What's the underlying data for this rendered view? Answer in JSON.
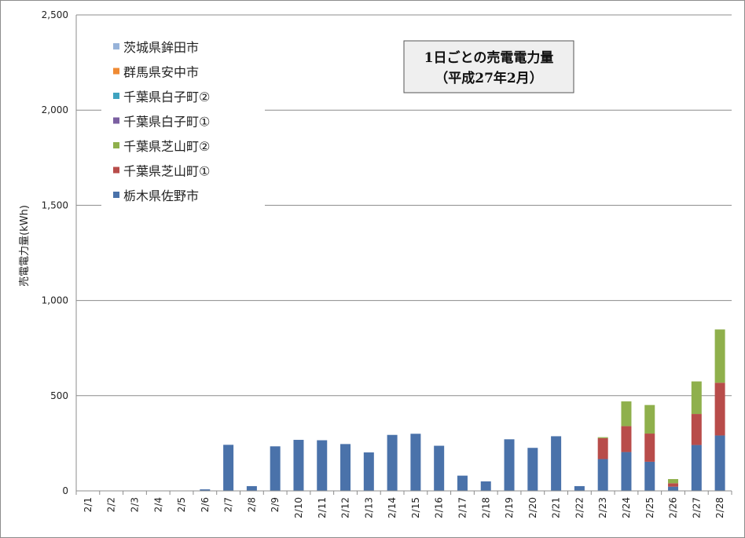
{
  "chart_data": {
    "type": "bar",
    "stacked": true,
    "title": "1日ごとの売電電力量",
    "subtitle": "（平成27年2月）",
    "xlabel": "",
    "ylabel": "売電電力量(kWh)",
    "ylim": [
      0,
      2500
    ],
    "yticks": [
      0,
      500,
      1000,
      1500,
      2000,
      2500
    ],
    "ytick_labels": [
      "0",
      "500",
      "1,000",
      "1,500",
      "2,000",
      "2,500"
    ],
    "grid": true,
    "legend_position": "top-left",
    "categories": [
      "2/1",
      "2/2",
      "2/3",
      "2/4",
      "2/5",
      "2/6",
      "2/7",
      "2/8",
      "2/9",
      "2/10",
      "2/11",
      "2/12",
      "2/13",
      "2/14",
      "2/15",
      "2/16",
      "2/17",
      "2/18",
      "2/19",
      "2/20",
      "2/21",
      "2/22",
      "2/23",
      "2/24",
      "2/25",
      "2/26",
      "2/27",
      "2/28"
    ],
    "legend_order": [
      "茨城県鉾田市",
      "群馬県安中市",
      "千葉県白子町②",
      "千葉県白子町①",
      "千葉県芝山町②",
      "千葉県芝山町①",
      "栃木県佐野市"
    ],
    "series": [
      {
        "name": "栃木県佐野市",
        "color": "#4a72aa",
        "values": [
          0,
          0,
          0,
          0,
          0,
          8,
          242,
          25,
          234,
          268,
          266,
          246,
          202,
          294,
          300,
          237,
          80,
          50,
          271,
          226,
          287,
          25,
          167,
          204,
          153,
          22,
          241,
          291
        ]
      },
      {
        "name": "千葉県芝山町①",
        "color": "#b84c4a",
        "values": [
          0,
          0,
          0,
          0,
          0,
          0,
          0,
          0,
          0,
          0,
          0,
          0,
          0,
          0,
          0,
          0,
          0,
          0,
          0,
          0,
          0,
          0,
          110,
          136,
          148,
          18,
          163,
          277
        ]
      },
      {
        "name": "千葉県芝山町②",
        "color": "#8fb04c",
        "values": [
          0,
          0,
          0,
          0,
          0,
          0,
          0,
          0,
          0,
          0,
          0,
          0,
          0,
          0,
          0,
          0,
          0,
          0,
          0,
          0,
          0,
          0,
          5,
          130,
          150,
          22,
          171,
          280
        ]
      },
      {
        "name": "千葉県白子町①",
        "color": "#7b5fa1",
        "values": [
          0,
          0,
          0,
          0,
          0,
          0,
          0,
          0,
          0,
          0,
          0,
          0,
          0,
          0,
          0,
          0,
          0,
          0,
          0,
          0,
          0,
          0,
          0,
          0,
          0,
          0,
          0,
          0
        ]
      },
      {
        "name": "千葉県白子町②",
        "color": "#3fa3bf",
        "values": [
          0,
          0,
          0,
          0,
          0,
          0,
          0,
          0,
          0,
          0,
          0,
          0,
          0,
          0,
          0,
          0,
          0,
          0,
          0,
          0,
          0,
          0,
          0,
          0,
          0,
          0,
          0,
          0
        ]
      },
      {
        "name": "群馬県安中市",
        "color": "#ef8a33",
        "values": [
          0,
          0,
          0,
          0,
          0,
          0,
          0,
          0,
          0,
          0,
          0,
          0,
          0,
          0,
          0,
          0,
          0,
          0,
          0,
          0,
          0,
          0,
          0,
          0,
          0,
          0,
          0,
          0
        ]
      },
      {
        "name": "茨城県鉾田市",
        "color": "#97b3d9",
        "values": [
          0,
          0,
          0,
          0,
          0,
          0,
          0,
          0,
          0,
          0,
          0,
          0,
          0,
          0,
          0,
          0,
          0,
          0,
          0,
          0,
          0,
          0,
          0,
          0,
          0,
          0,
          0,
          0
        ]
      }
    ]
  }
}
